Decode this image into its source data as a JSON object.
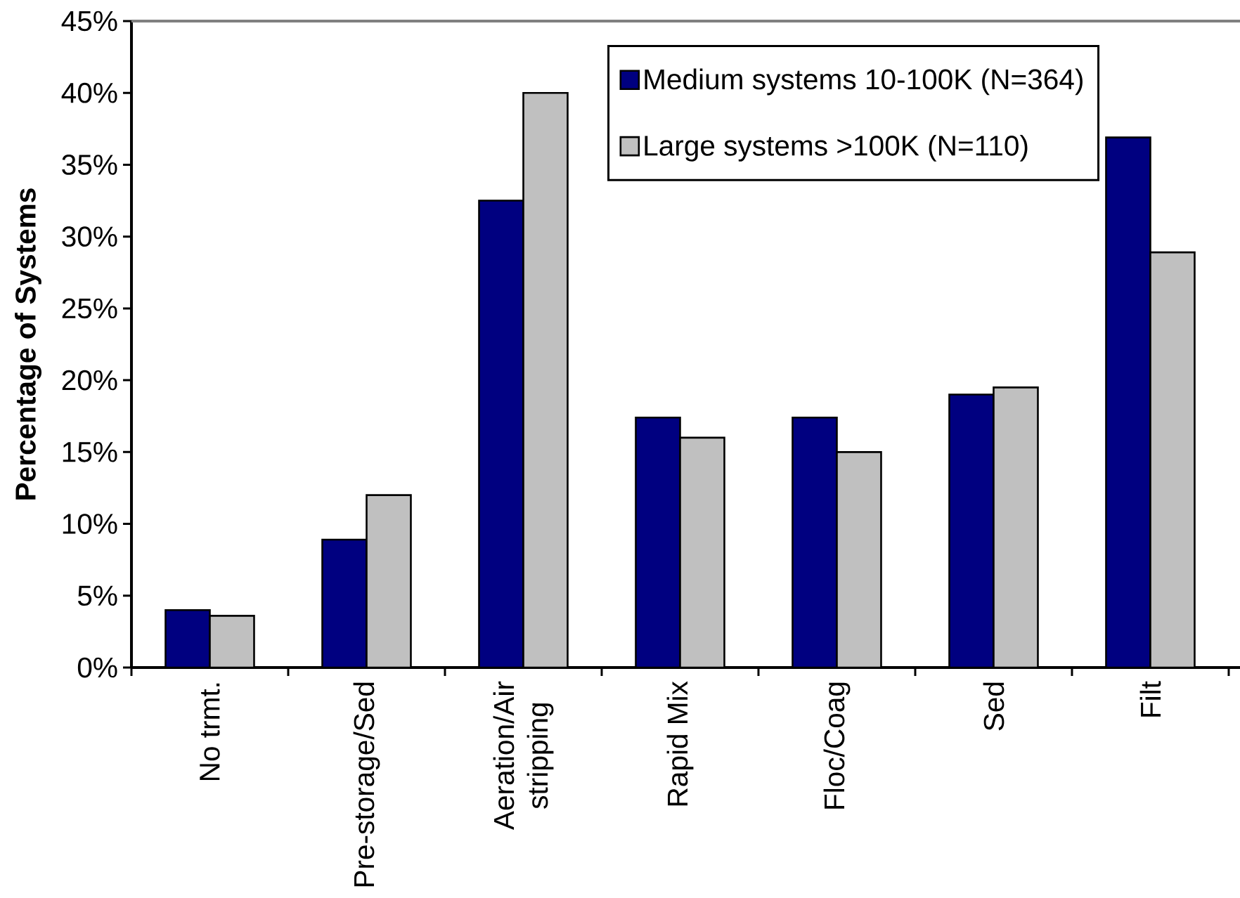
{
  "chart_data": {
    "type": "bar",
    "ylabel": "Percentage of Systems",
    "categories": [
      "No trmt.",
      "Pre-storage/Sed",
      "Aeration/Air stripping",
      "Rapid Mix",
      "Floc/Coag",
      "Sed",
      "Filt"
    ],
    "series": [
      {
        "name": "Medium systems 10-100K (N=364)",
        "color": "#000080",
        "values": [
          4.0,
          8.9,
          32.5,
          17.4,
          17.4,
          19.0,
          36.9
        ]
      },
      {
        "name": "Large systems >100K (N=110)",
        "color": "#c0c0c0",
        "values": [
          3.6,
          12.0,
          40.0,
          16.0,
          15.0,
          19.5,
          28.9
        ]
      }
    ],
    "ylim": [
      0,
      45
    ],
    "yticks": [
      {
        "value": 0,
        "label": "0%"
      },
      {
        "value": 5,
        "label": "5%"
      },
      {
        "value": 10,
        "label": "10%"
      },
      {
        "value": 15,
        "label": "15%"
      },
      {
        "value": 20,
        "label": "20%"
      },
      {
        "value": 25,
        "label": "25%"
      },
      {
        "value": 30,
        "label": "30%"
      },
      {
        "value": 35,
        "label": "35%"
      },
      {
        "value": 40,
        "label": "40%"
      },
      {
        "value": 45,
        "label": "45%"
      }
    ],
    "legend": "top right"
  }
}
